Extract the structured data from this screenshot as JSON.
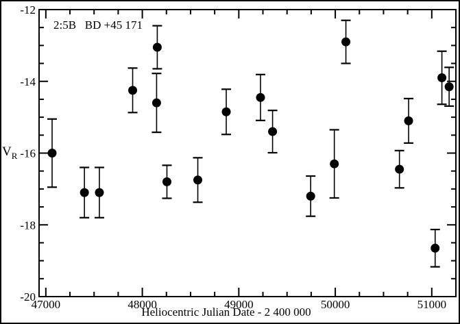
{
  "chart_data": {
    "type": "scatter",
    "title": "2:5B   BD +45 171",
    "xlabel": "Heliocentric Julian Date - 2 400 000",
    "ylabel_main": "V",
    "ylabel_sub": "R",
    "xlim": [
      46930,
      51250
    ],
    "ylim": [
      -20,
      -12
    ],
    "x_major_ticks": [
      47000,
      48000,
      49000,
      50000,
      51000
    ],
    "x_minor_step": 250,
    "y_major_ticks": [
      -12,
      -14,
      -16,
      -18,
      -20
    ],
    "y_minor_step": 0.5,
    "grid": false,
    "legend": "none",
    "marker": {
      "shape": "filled-circle",
      "color": "#000000",
      "radius": 6.5
    },
    "error_bars": "vertical-with-caps",
    "points": [
      {
        "hjd": 47065,
        "v": -16.0,
        "err": 0.95
      },
      {
        "hjd": 47400,
        "v": -17.1,
        "err": 0.7
      },
      {
        "hjd": 47555,
        "v": -17.1,
        "err": 0.7
      },
      {
        "hjd": 47900,
        "v": -14.25,
        "err": 0.62
      },
      {
        "hjd": 48155,
        "v": -13.05,
        "err": 0.6
      },
      {
        "hjd": 48148,
        "v": -14.6,
        "err": 0.82
      },
      {
        "hjd": 48255,
        "v": -16.8,
        "err": 0.46
      },
      {
        "hjd": 48575,
        "v": -16.75,
        "err": 0.62
      },
      {
        "hjd": 48870,
        "v": -14.85,
        "err": 0.63
      },
      {
        "hjd": 49225,
        "v": -14.45,
        "err": 0.64
      },
      {
        "hjd": 49350,
        "v": -15.4,
        "err": 0.59
      },
      {
        "hjd": 49745,
        "v": -17.2,
        "err": 0.56
      },
      {
        "hjd": 49990,
        "v": -16.3,
        "err": 0.95
      },
      {
        "hjd": 50110,
        "v": -12.9,
        "err": 0.6
      },
      {
        "hjd": 50665,
        "v": -16.45,
        "err": 0.52
      },
      {
        "hjd": 50760,
        "v": -15.1,
        "err": 0.62
      },
      {
        "hjd": 51035,
        "v": -18.65,
        "err": 0.52
      },
      {
        "hjd": 51105,
        "v": -13.9,
        "err": 0.74
      },
      {
        "hjd": 51180,
        "v": -14.15,
        "err": 0.54
      }
    ]
  }
}
